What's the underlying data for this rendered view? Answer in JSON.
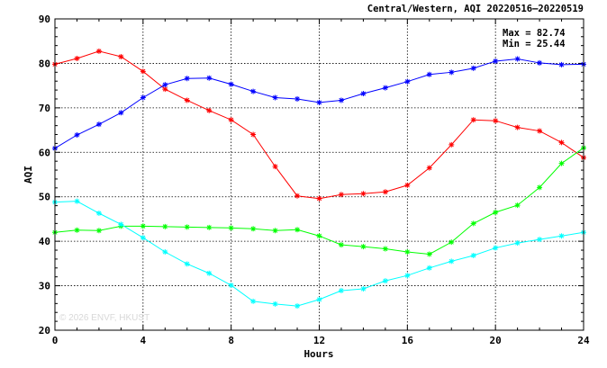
{
  "chart_data": {
    "type": "line",
    "title": "Central/Western, AQI 20220516–20220519",
    "xlabel": "Hours",
    "ylabel": "AQI",
    "xlim": [
      0,
      24
    ],
    "ylim": [
      20,
      90
    ],
    "x_ticks": [
      0,
      4,
      8,
      12,
      16,
      20,
      24
    ],
    "y_ticks": [
      20,
      30,
      40,
      50,
      60,
      70,
      80,
      90
    ],
    "grid": true,
    "annotations": [
      "Max = 82.74",
      "Min = 25.44"
    ],
    "watermark": "© 2026  ENVF, HKUST",
    "x": [
      0,
      1,
      2,
      3,
      4,
      5,
      6,
      7,
      8,
      9,
      10,
      11,
      12,
      13,
      14,
      15,
      16,
      17,
      18,
      19,
      20,
      21,
      22,
      23,
      24
    ],
    "series": [
      {
        "color": "#ff0000",
        "values": [
          79.8,
          81.1,
          82.74,
          81.5,
          78.2,
          74.2,
          71.7,
          69.4,
          67.3,
          64.0,
          56.8,
          50.2,
          49.6,
          50.5,
          50.7,
          51.1,
          52.6,
          56.5,
          61.7,
          67.3,
          67.1,
          65.6,
          64.8,
          62.2,
          58.8
        ]
      },
      {
        "color": "#0000ff",
        "values": [
          60.9,
          63.9,
          66.3,
          68.9,
          72.3,
          75.2,
          76.6,
          76.7,
          75.3,
          73.7,
          72.3,
          72.0,
          71.2,
          71.7,
          73.2,
          74.5,
          75.9,
          77.5,
          78.0,
          78.9,
          80.5,
          81.0,
          80.1,
          79.7,
          79.8
        ]
      },
      {
        "color": "#00ff00",
        "values": [
          42.0,
          42.5,
          42.4,
          43.4,
          43.4,
          43.3,
          43.2,
          43.1,
          43.0,
          42.8,
          42.4,
          42.6,
          41.2,
          39.2,
          38.8,
          38.3,
          37.6,
          37.1,
          39.8,
          44.0,
          46.5,
          48.1,
          52.1,
          57.5,
          61.0
        ]
      },
      {
        "color": "#00ffff",
        "values": [
          48.8,
          49.0,
          46.3,
          43.8,
          40.8,
          37.6,
          34.9,
          32.8,
          30.1,
          26.5,
          25.9,
          25.44,
          26.9,
          28.9,
          29.3,
          31.1,
          32.3,
          34.0,
          35.5,
          36.8,
          38.5,
          39.6,
          40.4,
          41.2,
          42.0
        ]
      }
    ]
  }
}
